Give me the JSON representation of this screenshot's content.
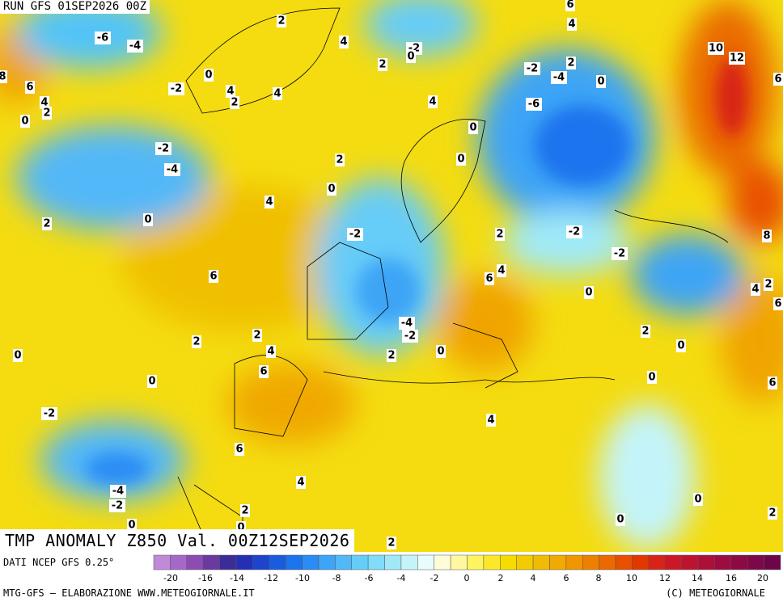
{
  "header": {
    "run": "RUN GFS 01SEP2026 00Z"
  },
  "title": "TMP ANOMALY Z850 Val. 00Z12SEP2026",
  "source": "DATI NCEP GFS 0.25°",
  "credit_left": "MTG-GFS — ELABORAZIONE WWW.METEOGIORNALE.IT",
  "credit_right": "(C) METEOGIORNALE",
  "colorbar": {
    "colors": [
      "#c08ad8",
      "#a668c8",
      "#8c4cb4",
      "#6a3aa0",
      "#3c2c98",
      "#2430b4",
      "#1c44cc",
      "#1a5ce0",
      "#1c74ee",
      "#2a8cf4",
      "#3ea4f6",
      "#52b8f8",
      "#66ccf8",
      "#80dcf8",
      "#a0eaf8",
      "#c4f4fa",
      "#e8fcfc",
      "#fffcd8",
      "#fff8a0",
      "#fff460",
      "#fce828",
      "#f6dc00",
      "#f2cc00",
      "#f0bc00",
      "#f0aa00",
      "#f09600",
      "#ee8000",
      "#ec6800",
      "#e85000",
      "#e23800",
      "#d82418",
      "#cc1824",
      "#bc1430",
      "#ac1038",
      "#9c0c40",
      "#8c0a44",
      "#7c0848",
      "#6c0648"
    ],
    "ticks": [
      -20,
      -16,
      -14,
      -12,
      -10,
      -8,
      -6,
      -4,
      -2,
      0,
      2,
      4,
      6,
      8,
      10,
      12,
      14,
      16,
      20
    ]
  },
  "map_labels": [
    6,
    4,
    -6,
    -4,
    2,
    4,
    -2,
    0,
    2,
    -2,
    -4,
    2,
    0,
    10,
    12,
    6,
    8,
    6,
    4,
    2,
    0,
    -2,
    0,
    4,
    2,
    4,
    4,
    -6,
    0,
    -2,
    -4,
    2,
    0,
    0,
    4,
    0,
    2,
    -2,
    2,
    -2,
    -2,
    8,
    6,
    6,
    4,
    0,
    4,
    2,
    6,
    -4,
    -2,
    2,
    2,
    4,
    2,
    0,
    2,
    0,
    0,
    6,
    0,
    0,
    6,
    -2,
    4,
    6,
    4,
    -4,
    -2,
    0,
    2,
    0,
    0,
    2,
    0,
    2
  ]
}
